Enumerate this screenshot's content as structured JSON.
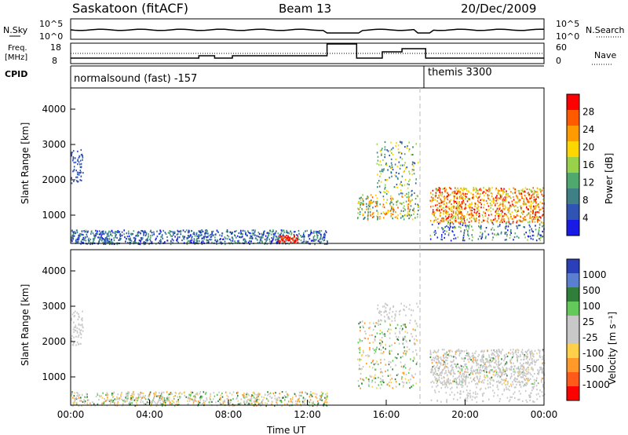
{
  "header": {
    "station": "Saskatoon (fitACF)",
    "beam": "Beam 13",
    "date": "20/Dec/2009"
  },
  "status_panel": {
    "left_labels": {
      "nsky": "N.Sky",
      "freq": "Freq.",
      "freq_unit": "[MHz]",
      "cpid": "CPID"
    },
    "right_labels": {
      "nsearch": "N.Search",
      "nave": "Nave"
    },
    "noise_axis_left": [
      "10^5",
      "10^0"
    ],
    "noise_axis_right": [
      "10^5",
      "10^0"
    ],
    "freq_axis": [
      "18",
      "8"
    ],
    "nave_axis": [
      "60",
      "0"
    ],
    "cpid_modes": [
      "normalsound (fast) -157",
      "themis 3300"
    ]
  },
  "chart_data": [
    {
      "type": "heatmap",
      "name": "power",
      "ylabel": "Slant Range [km]",
      "yticks": [
        1000,
        2000,
        3000,
        4000
      ],
      "ylim": [
        200,
        4600
      ],
      "x_range_hours": [
        0,
        24
      ],
      "colorbar": {
        "label": "Power [dB]",
        "ticks": [
          "28",
          "24",
          "20",
          "16",
          "12",
          "8",
          "4"
        ],
        "colors": [
          "#ff0000",
          "#ff5a00",
          "#ff9a00",
          "#ffd700",
          "#99d24a",
          "#4fa86e",
          "#3f7f86",
          "#2f54b4",
          "#1a1ae6"
        ]
      }
    },
    {
      "type": "heatmap",
      "name": "velocity",
      "ylabel": "Slant Range [km]",
      "yticks": [
        1000,
        2000,
        3000,
        4000
      ],
      "ylim": [
        200,
        4600
      ],
      "x_range_hours": [
        0,
        24
      ],
      "colorbar": {
        "label": "Velocity [m s⁻¹]",
        "ticks": [
          "1000",
          "500",
          "100",
          "25",
          "-25",
          "-100",
          "-500",
          "-1000"
        ],
        "colors": [
          "#2a3fb8",
          "#5a7fd0",
          "#2f7f3a",
          "#63c95a",
          "#c8c8c8",
          "#c8c8c8",
          "#ffd04a",
          "#ff9a2a",
          "#ff5a1a",
          "#ff0000"
        ]
      }
    }
  ],
  "xaxis": {
    "ticks": [
      "00:00",
      "04:00",
      "08:00",
      "12:00",
      "16:00",
      "20:00",
      "00:00"
    ],
    "label": "Time UT"
  }
}
